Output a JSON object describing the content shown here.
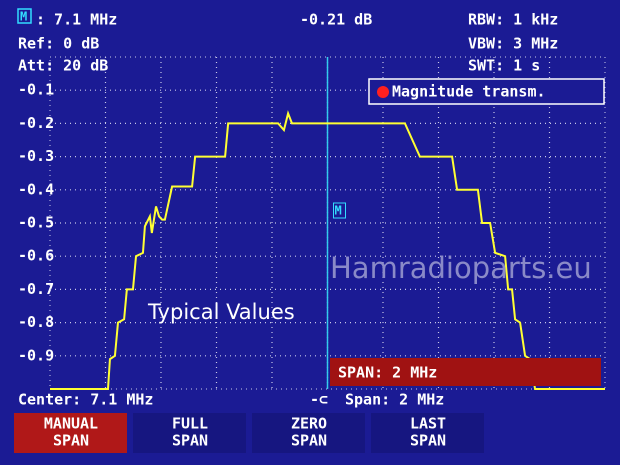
{
  "header": {
    "ref": "Ref: 0 dB",
    "att": "Att: 20 dB",
    "rbw": "RBW: 1 kHz",
    "vbw": "VBW: 3 MHz",
    "swt": "SWT: 1 s"
  },
  "chart_data": {
    "type": "line",
    "marker": {
      "label": "M",
      "x": 7.1,
      "x_label": ": 7.1 MHz",
      "value": -0.21,
      "value_label": "-0.21 dB"
    },
    "series": [
      {
        "name": "Magnitude transm.",
        "color": "#ffff33",
        "x": [
          6.1,
          6.309,
          6.316,
          6.334,
          6.345,
          6.367,
          6.377,
          6.399,
          6.41,
          6.435,
          6.442,
          6.46,
          6.467,
          6.482,
          6.493,
          6.504,
          6.514,
          6.54,
          6.612,
          6.623,
          6.731,
          6.742,
          6.922,
          6.943,
          6.958,
          6.972,
          7.379,
          7.433,
          7.549,
          7.567,
          7.642,
          7.657,
          7.686,
          7.704,
          7.74,
          7.751,
          7.765,
          7.776,
          7.794,
          7.812,
          7.83,
          7.848,
          8.1
        ],
        "values": [
          -1.0,
          -1.0,
          -0.91,
          -0.9,
          -0.8,
          -0.79,
          -0.7,
          -0.7,
          -0.6,
          -0.59,
          -0.51,
          -0.48,
          -0.53,
          -0.45,
          -0.48,
          -0.49,
          -0.49,
          -0.39,
          -0.39,
          -0.3,
          -0.3,
          -0.2,
          -0.2,
          -0.22,
          -0.17,
          -0.2,
          -0.2,
          -0.3,
          -0.3,
          -0.4,
          -0.4,
          -0.5,
          -0.5,
          -0.59,
          -0.6,
          -0.7,
          -0.7,
          -0.79,
          -0.8,
          -0.9,
          -0.91,
          -1.0,
          -1.0
        ]
      }
    ],
    "xlim": [
      6.1,
      8.1
    ],
    "ylim": [
      -1.0,
      0
    ],
    "yticks": [
      -0.1,
      -0.2,
      -0.3,
      -0.4,
      -0.5,
      -0.6,
      -0.7,
      -0.8,
      -0.9
    ],
    "grid": true,
    "legend": "top-right",
    "annotation": "Typical Values",
    "watermark": "Hamradioparts.eu"
  },
  "footer": {
    "center": "Center: 7.1 MHz",
    "span": "Span: 2 MHz",
    "span_box": "SPAN: 2 MHz"
  },
  "softkeys": [
    [
      "MANUAL",
      "SPAN"
    ],
    [
      "FULL",
      "SPAN"
    ],
    [
      "ZERO",
      "SPAN"
    ],
    [
      "LAST",
      "SPAN"
    ]
  ]
}
